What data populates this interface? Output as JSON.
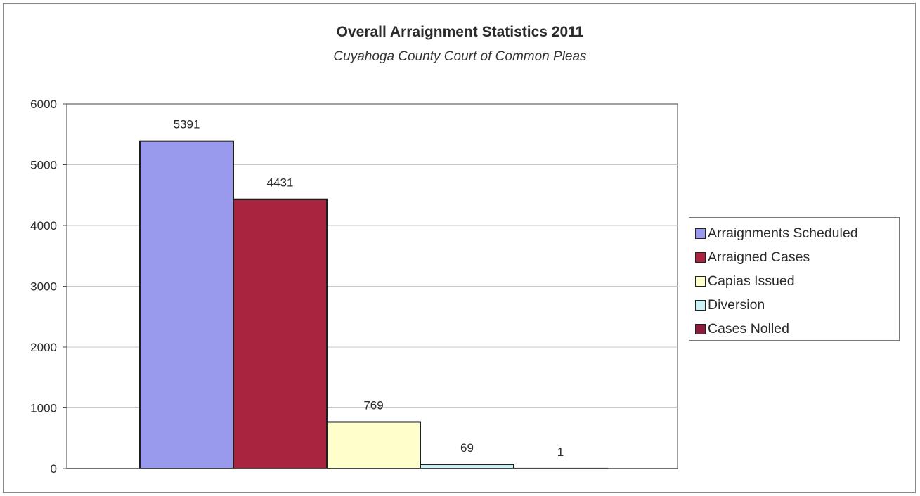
{
  "chart_data": {
    "type": "bar",
    "title": "Overall Arraignment Statistics 2011",
    "subtitle": "Cuyahoga County Court of Common Pleas",
    "xlabel": "",
    "ylabel": "",
    "ylim": [
      0,
      6000
    ],
    "yticks": [
      "0",
      "1000",
      "2000",
      "3000",
      "4000",
      "5000",
      "6000"
    ],
    "grid": true,
    "legend_position": "right",
    "series": [
      {
        "name": "Arraignments Scheduled",
        "values": [
          5391
        ],
        "color": "#9999ee",
        "label": "5391"
      },
      {
        "name": "Arraigned Cases",
        "values": [
          4431
        ],
        "color": "#a8243f",
        "label": "4431"
      },
      {
        "name": "Capias Issued",
        "values": [
          769
        ],
        "color": "#ffffcc",
        "label": "769"
      },
      {
        "name": "Diversion",
        "values": [
          69
        ],
        "color": "#ccf2f8",
        "label": "69"
      },
      {
        "name": "Cases Nolled",
        "values": [
          1
        ],
        "color": "#8c1c3c",
        "label": "1"
      }
    ]
  }
}
